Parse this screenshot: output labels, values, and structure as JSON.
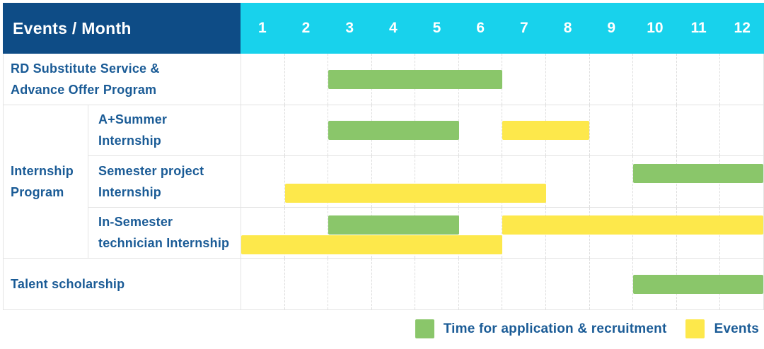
{
  "header": {
    "title": "Events / Month"
  },
  "chart_data": {
    "type": "bar",
    "subtype": "gantt",
    "title": "Events / Month",
    "x_axis": {
      "label": "Month",
      "ticks": [
        "1",
        "2",
        "3",
        "4",
        "5",
        "6",
        "7",
        "8",
        "9",
        "10",
        "11",
        "12"
      ],
      "range": [
        0,
        12
      ],
      "grid": "dashed-vertical"
    },
    "series_legend": [
      {
        "key": "application",
        "label": "Time for application & recruitment",
        "color": "#8ac66a"
      },
      {
        "key": "events",
        "label": "Events",
        "color": "#fde84b"
      }
    ],
    "group": {
      "label": "Internship Program",
      "label_lines": [
        "Internship",
        "Program"
      ],
      "first_row_index": 1,
      "last_row_index": 3
    },
    "rows": [
      {
        "label": "RD Substitute Service & Advance Offer Program",
        "label_lines": [
          "RD Substitute Service &",
          "Advance Offer Program"
        ],
        "in_group": false,
        "group_last": false,
        "bars": [
          {
            "series": "application",
            "start_month": 3,
            "end_month": 6,
            "start": 2,
            "end": 6,
            "line": "center"
          }
        ]
      },
      {
        "label": "A+Summer Internship",
        "label_lines": [
          "A+Summer",
          "Internship"
        ],
        "in_group": true,
        "group_last": false,
        "bars": [
          {
            "series": "application",
            "start_month": 3,
            "end_month": 5,
            "start": 2,
            "end": 5,
            "line": "center"
          },
          {
            "series": "events",
            "start_month": 7,
            "end_month": 8,
            "start": 6,
            "end": 8,
            "line": "center"
          }
        ]
      },
      {
        "label": "Semester project Internship",
        "label_lines": [
          "Semester project",
          "Internship"
        ],
        "in_group": true,
        "group_last": false,
        "bars": [
          {
            "series": "application",
            "start_month": 10,
            "end_month": 12,
            "start": 9,
            "end": 12,
            "line": "top"
          },
          {
            "series": "events",
            "start_month": 2,
            "end_month": 7,
            "start": 1,
            "end": 7,
            "line": "bottom"
          }
        ]
      },
      {
        "label": "In-Semester technician Internship",
        "label_lines": [
          "In-Semester",
          "technician Internship"
        ],
        "in_group": true,
        "group_last": true,
        "bars": [
          {
            "series": "application",
            "start_month": 3,
            "end_month": 5,
            "start": 2,
            "end": 5,
            "line": "top"
          },
          {
            "series": "events",
            "start_month": 7,
            "end_month": 12,
            "start": 6,
            "end": 12,
            "line": "top"
          },
          {
            "series": "events",
            "start_month": 1,
            "end_month": 6,
            "start": 0,
            "end": 6,
            "line": "bottom"
          }
        ]
      },
      {
        "label": "Talent scholarship",
        "label_lines": [
          "Talent scholarship"
        ],
        "in_group": false,
        "group_last": false,
        "bars": [
          {
            "series": "application",
            "start_month": 10,
            "end_month": 12,
            "start": 9,
            "end": 12,
            "line": "center"
          }
        ]
      }
    ]
  },
  "legend": {
    "items": [
      {
        "label": "Time for application & recruitment",
        "swatch": "application"
      },
      {
        "label": "Events",
        "swatch": "events"
      }
    ]
  },
  "colors": {
    "header_bg": "#0e4c86",
    "months_bg": "#18d2ec",
    "label_text": "#1a5b96",
    "application_green": "#8ac66a",
    "events_yellow": "#fde84b",
    "grid_line": "#e3e3e3"
  }
}
